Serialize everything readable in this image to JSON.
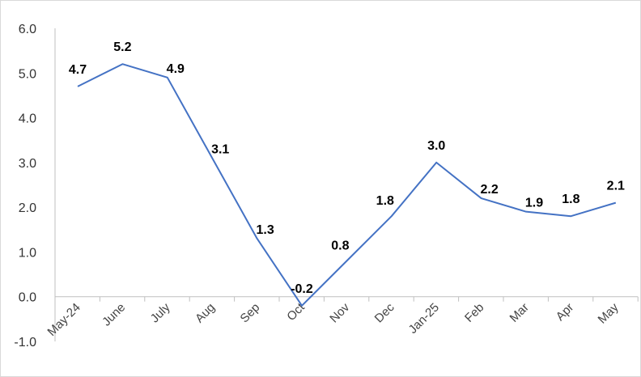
{
  "chart_data": {
    "type": "line",
    "title": "",
    "xlabel": "",
    "ylabel": "",
    "categories": [
      "May-24",
      "June",
      "July",
      "Aug",
      "Sep",
      "Oct",
      "Nov",
      "Dec",
      "Jan-25",
      "Feb",
      "Mar",
      "Apr",
      "May"
    ],
    "series": [
      {
        "values": [
          4.7,
          5.2,
          4.9,
          3.1,
          1.3,
          -0.2,
          0.8,
          1.8,
          3.0,
          2.2,
          1.9,
          1.8,
          2.1
        ],
        "data_labels": [
          "4.7",
          "5.2",
          "4.9",
          "3.1",
          "1.3",
          "-0.2",
          "0.8",
          "1.8",
          "3.0",
          "2.2",
          "1.9",
          "1.8",
          "2.1"
        ],
        "color": "#4472c4"
      }
    ],
    "ylim": [
      -1.0,
      6.0
    ],
    "yticks": [
      "-1.0",
      "0.0",
      "1.0",
      "2.0",
      "3.0",
      "4.0",
      "5.0",
      "6.0"
    ],
    "grid": false,
    "legend": "none"
  }
}
